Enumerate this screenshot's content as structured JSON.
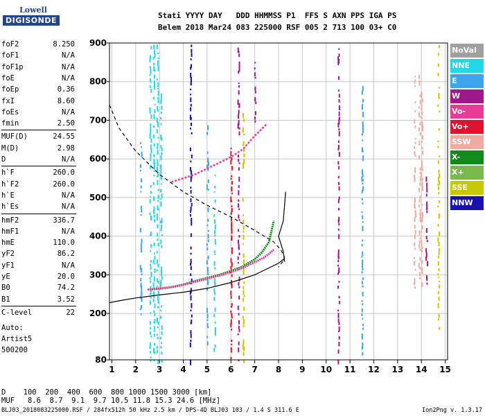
{
  "logo": {
    "line1": "Lowell",
    "line2": "DIGISONDE"
  },
  "header": {
    "line1": "Stati YYYY DAY   DDD HHMMSS P1  FFS S AXN PPS IGA PS",
    "line2": "Belem 2018 Mar24 083 225000 RSF 005 2 713 100 03+ C0"
  },
  "params": [
    {
      "name": "foF2",
      "value": "8.250"
    },
    {
      "name": "foF1",
      "value": "N/A"
    },
    {
      "name": "foF1p",
      "value": "N/A"
    },
    {
      "name": "foE",
      "value": "N/A"
    },
    {
      "name": "foEp",
      "value": "0.36"
    },
    {
      "name": "fxI",
      "value": "8.60"
    },
    {
      "name": "foEs",
      "value": "N/A"
    },
    {
      "name": "fmin",
      "value": "2.50"
    },
    {
      "name": "MUF(D)",
      "value": "24.55"
    },
    {
      "name": "M(D)",
      "value": "2.98"
    },
    {
      "name": "D",
      "value": "N/A"
    },
    {
      "name": "h`F",
      "value": "260.0"
    },
    {
      "name": "h`F2",
      "value": "260.0"
    },
    {
      "name": "h`E",
      "value": "N/A"
    },
    {
      "name": "h`Es",
      "value": "N/A"
    },
    {
      "name": "hmF2",
      "value": "336.7"
    },
    {
      "name": "hmF1",
      "value": "N/A"
    },
    {
      "name": "hmE",
      "value": "110.0"
    },
    {
      "name": "yF2",
      "value": "86.2"
    },
    {
      "name": "yF1",
      "value": "N/A"
    },
    {
      "name": "yE",
      "value": "20.0"
    },
    {
      "name": "B0",
      "value": "74.2"
    },
    {
      "name": "B1",
      "value": "3.52"
    },
    {
      "name": "C-level",
      "value": "22"
    }
  ],
  "auto": {
    "line1": "Auto:",
    "line2": "Artist5",
    "line3": "500200"
  },
  "legend": [
    {
      "label": "NoVal",
      "color": "#a0a0a0"
    },
    {
      "label": "NNE",
      "color": "#22d8e8"
    },
    {
      "label": "E",
      "color": "#3da5ee"
    },
    {
      "label": "W",
      "color": "#a0168c"
    },
    {
      "label": "Vo-",
      "color": "#e83a96"
    },
    {
      "label": "Vo+",
      "color": "#e0102e"
    },
    {
      "label": "SSW",
      "color": "#f0aaa0"
    },
    {
      "label": "X-",
      "color": "#118a1c"
    },
    {
      "label": "X+",
      "color": "#7ab84e"
    },
    {
      "label": "SSE",
      "color": "#c8c800"
    },
    {
      "label": "NNW",
      "color": "#1a10b0"
    }
  ],
  "muf_table": {
    "d_label": "D",
    "d_values": "100  200  400  600  800 1000 1500 3000 [km]",
    "muf_label": "MUF",
    "muf_values": "8.6  8.7  9.1  9.7 10.5 11.8 15.3 24.6 [MHz]"
  },
  "footer": {
    "left": "BLJ03_2018083225000.RSF / 284fx512h 50 kHz 2.5 km / DPS-4D BLJ03 103 / 1.4 S 311.6 E",
    "right": "Ion2Png v. 1.3.17"
  },
  "chart_data": {
    "type": "scatter",
    "xlabel": "",
    "ylabel": "",
    "xlim": [
      0.9,
      15.1
    ],
    "ylim": [
      80,
      900
    ],
    "xticks": [
      1,
      2,
      3,
      4,
      5,
      6,
      7,
      8,
      9,
      10,
      11,
      12,
      13,
      14,
      15
    ],
    "yticks": [
      80,
      200,
      300,
      400,
      500,
      600,
      700,
      800,
      900
    ],
    "grid": true,
    "trace_x_plus": {
      "x": [
        2.6,
        3.0,
        3.5,
        4.0,
        4.5,
        5.0,
        5.5,
        6.0,
        6.5,
        7.0,
        7.3,
        7.6,
        7.8
      ],
      "y": [
        262,
        264,
        268,
        275,
        284,
        292,
        300,
        310,
        322,
        340,
        358,
        385,
        440
      ]
    },
    "trace_x_minus": {
      "x": [
        2.5,
        3.0,
        3.5,
        4.0,
        4.5,
        5.0,
        5.5,
        6.0,
        6.5,
        7.0,
        7.4,
        7.8
      ],
      "y": [
        262,
        265,
        268,
        274,
        282,
        290,
        298,
        307,
        318,
        333,
        345,
        365
      ]
    },
    "profile_solid": {
      "x": [
        0.9,
        1.5,
        2.0,
        2.5,
        3.0,
        4.0,
        5.0,
        6.0,
        7.0,
        7.5,
        8.0,
        8.2,
        8.25,
        8.2,
        8.0,
        8.2,
        8.3
      ],
      "y": [
        228,
        235,
        240,
        244,
        248,
        255,
        265,
        280,
        300,
        315,
        330,
        340,
        336,
        360,
        400,
        440,
        515
      ]
    },
    "profile_dashed": {
      "x": [
        0.9,
        1.3,
        2.0,
        3.0,
        4.0,
        5.0,
        6.0,
        7.0,
        7.8,
        8.1,
        8.25,
        8.2,
        8.0
      ],
      "y": [
        740,
        680,
        620,
        560,
        515,
        480,
        450,
        415,
        385,
        365,
        345,
        336,
        320
      ]
    },
    "second_hop": {
      "x": [
        3.5,
        4.5,
        5.0,
        5.5,
        6.0,
        6.5,
        7.0,
        7.5
      ],
      "y": [
        540,
        560,
        575,
        590,
        605,
        625,
        660,
        690
      ]
    },
    "columns": [
      {
        "x": 2.6,
        "y0": 80,
        "y1": 900,
        "series": "NNE"
      },
      {
        "x": 2.75,
        "y0": 80,
        "y1": 900,
        "series": "NNE"
      },
      {
        "x": 2.9,
        "y0": 80,
        "y1": 900,
        "series": "NNE"
      },
      {
        "x": 3.05,
        "y0": 80,
        "y1": 780,
        "series": "NNE"
      },
      {
        "x": 2.2,
        "y0": 200,
        "y1": 650,
        "series": "E"
      },
      {
        "x": 4.3,
        "y0": 80,
        "y1": 900,
        "series": "NNW"
      },
      {
        "x": 5.0,
        "y0": 120,
        "y1": 700,
        "series": "E"
      },
      {
        "x": 5.3,
        "y0": 100,
        "y1": 560,
        "series": "NNE"
      },
      {
        "x": 6.0,
        "y0": 80,
        "y1": 640,
        "series": "Vo+"
      },
      {
        "x": 6.3,
        "y0": 80,
        "y1": 900,
        "series": "W"
      },
      {
        "x": 6.5,
        "y0": 80,
        "y1": 720,
        "series": "SSE"
      },
      {
        "x": 7.0,
        "y0": 700,
        "y1": 860,
        "series": "W"
      },
      {
        "x": 10.5,
        "y0": 80,
        "y1": 900,
        "series": "W"
      },
      {
        "x": 11.5,
        "y0": 100,
        "y1": 860,
        "series": "E"
      },
      {
        "x": 13.7,
        "y0": 270,
        "y1": 820,
        "series": "SSW"
      },
      {
        "x": 13.9,
        "y0": 270,
        "y1": 820,
        "series": "SSW"
      },
      {
        "x": 14.0,
        "y0": 280,
        "y1": 780,
        "series": "SSW"
      },
      {
        "x": 14.2,
        "y0": 280,
        "y1": 560,
        "series": "W"
      },
      {
        "x": 14.7,
        "y0": 150,
        "y1": 900,
        "series": "SSE"
      }
    ]
  }
}
